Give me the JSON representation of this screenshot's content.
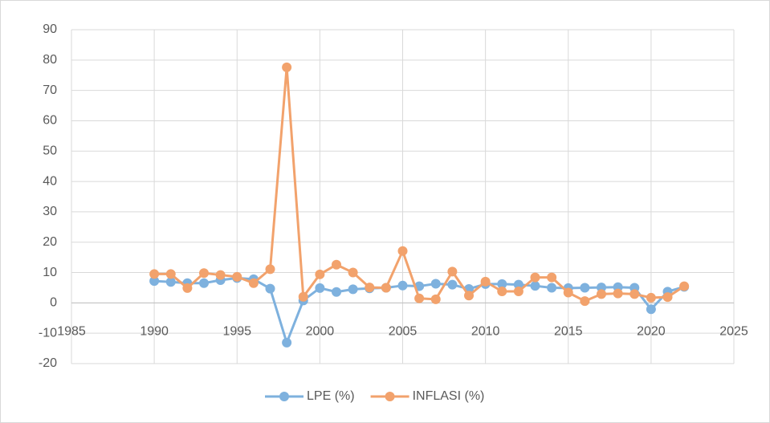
{
  "chart_data": {
    "type": "line",
    "x": [
      1990,
      1991,
      1992,
      1993,
      1994,
      1995,
      1996,
      1997,
      1998,
      1999,
      2000,
      2001,
      2002,
      2003,
      2004,
      2005,
      2006,
      2007,
      2008,
      2009,
      2010,
      2011,
      2012,
      2013,
      2014,
      2015,
      2016,
      2017,
      2018,
      2019,
      2020,
      2021,
      2022
    ],
    "series": [
      {
        "name": "LPE (%)",
        "color": "#7eb1de",
        "values": [
          7.2,
          6.9,
          6.5,
          6.5,
          7.5,
          8.2,
          7.8,
          4.7,
          -13.1,
          0.8,
          4.9,
          3.6,
          4.5,
          4.8,
          5.0,
          5.7,
          5.5,
          6.3,
          6.0,
          4.6,
          6.2,
          6.2,
          6.0,
          5.6,
          5.0,
          4.9,
          5.0,
          5.1,
          5.2,
          5.0,
          -2.1,
          3.7,
          5.3
        ]
      },
      {
        "name": "INFLASI (%)",
        "color": "#f2a26c",
        "values": [
          9.5,
          9.5,
          4.9,
          9.8,
          9.2,
          8.6,
          6.5,
          11.1,
          77.6,
          2.0,
          9.4,
          12.6,
          10.0,
          5.1,
          5.0,
          17.1,
          1.5,
          1.2,
          10.3,
          2.4,
          7.0,
          3.8,
          3.8,
          8.4,
          8.4,
          3.4,
          0.6,
          2.9,
          3.1,
          2.9,
          1.7,
          1.9,
          5.5
        ]
      }
    ],
    "xlim": [
      1985,
      2025
    ],
    "xticks": [
      1985,
      1990,
      1995,
      2000,
      2005,
      2010,
      2015,
      2020,
      2025
    ],
    "ylim": [
      -20,
      90
    ],
    "yticks": [
      -20,
      -10,
      0,
      10,
      20,
      30,
      40,
      50,
      60,
      70,
      80,
      90
    ],
    "grid": true,
    "legend": "bottom"
  }
}
